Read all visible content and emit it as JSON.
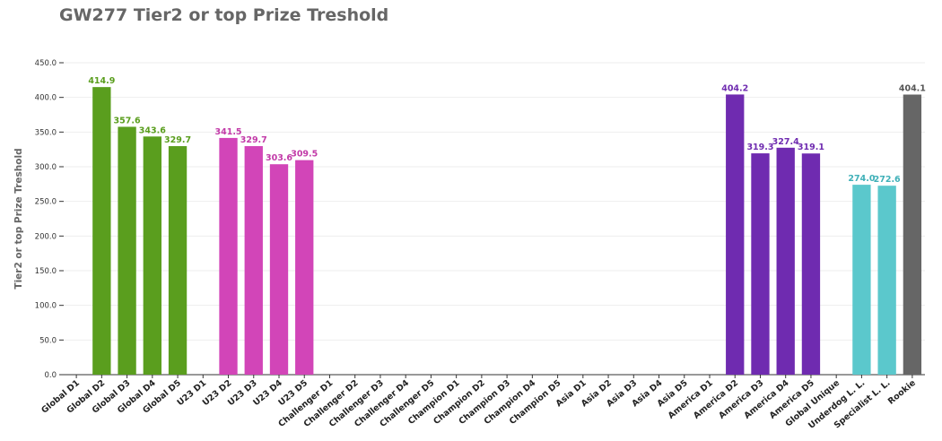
{
  "chart_data": {
    "type": "bar",
    "title": "GW277 Tier2 or top Prize Treshold",
    "ylabel": "Tier2 or top Prize Treshold",
    "xlabel": "",
    "ylim": [
      0,
      450
    ],
    "yticks": [
      0,
      50,
      100,
      150,
      200,
      250,
      300,
      350,
      400,
      450
    ],
    "ytick_labels": [
      "0.0",
      "50.0",
      "100.0",
      "150.0",
      "200.0",
      "250.0",
      "300.0",
      "350.0",
      "400.0",
      "450.0"
    ],
    "grid": true,
    "categories": [
      "Global D1",
      "Global D2",
      "Global D3",
      "Global D4",
      "Global D5",
      "U23 D1",
      "U23 D2",
      "U23 D3",
      "U23 D4",
      "U23 D5",
      "Challenger D1",
      "Challenger D2",
      "Challenger D3",
      "Challenger D4",
      "Challenger D5",
      "Champion D1",
      "Champion D2",
      "Champion D3",
      "Champion D4",
      "Champion D5",
      "Asia D1",
      "Asia D2",
      "Asia D3",
      "Asia D4",
      "Asia D5",
      "America D1",
      "America D2",
      "America D3",
      "America D4",
      "America D5",
      "Global Unique",
      "Underdog L. L.",
      "Specialist L. L.",
      "Rookie"
    ],
    "values": [
      null,
      414.9,
      357.6,
      343.6,
      329.7,
      null,
      341.5,
      329.7,
      303.6,
      309.5,
      null,
      null,
      null,
      null,
      null,
      null,
      null,
      null,
      null,
      null,
      null,
      null,
      null,
      null,
      null,
      null,
      404.2,
      319.3,
      327.4,
      319.1,
      null,
      274.0,
      272.6,
      404.1
    ],
    "value_labels": [
      "",
      "414.9",
      "357.6",
      "343.6",
      "329.7",
      "",
      "341.5",
      "329.7",
      "303.6",
      "309.5",
      "",
      "",
      "",
      "",
      "",
      "",
      "",
      "",
      "",
      "",
      "",
      "",
      "",
      "",
      "",
      "",
      "404.2",
      "319.3",
      "327.4",
      "319.1",
      "",
      "274.0",
      "272.6",
      "404.1"
    ],
    "colors": [
      "#5a9e1e",
      "#5a9e1e",
      "#5a9e1e",
      "#5a9e1e",
      "#5a9e1e",
      "#d245b8",
      "#d245b8",
      "#d245b8",
      "#d245b8",
      "#d245b8",
      "#d245b8",
      "#d245b8",
      "#d245b8",
      "#d245b8",
      "#d245b8",
      "#d245b8",
      "#d245b8",
      "#d245b8",
      "#d245b8",
      "#d245b8",
      "#6f2bb0",
      "#6f2bb0",
      "#6f2bb0",
      "#6f2bb0",
      "#6f2bb0",
      "#6f2bb0",
      "#6f2bb0",
      "#6f2bb0",
      "#6f2bb0",
      "#6f2bb0",
      "#4dbdc4",
      "#5bc8cc",
      "#5bc8cc",
      "#666666"
    ],
    "label_colors": [
      "#5a9e1e",
      "#5a9e1e",
      "#5a9e1e",
      "#5a9e1e",
      "#5a9e1e",
      "#c23aa8",
      "#c23aa8",
      "#c23aa8",
      "#c23aa8",
      "#c23aa8",
      "#c23aa8",
      "#c23aa8",
      "#c23aa8",
      "#c23aa8",
      "#c23aa8",
      "#c23aa8",
      "#c23aa8",
      "#c23aa8",
      "#c23aa8",
      "#c23aa8",
      "#6f2bb0",
      "#6f2bb0",
      "#6f2bb0",
      "#6f2bb0",
      "#6f2bb0",
      "#6f2bb0",
      "#6f2bb0",
      "#6f2bb0",
      "#6f2bb0",
      "#6f2bb0",
      "#3fb0b8",
      "#3fb0b8",
      "#3fb0b8",
      "#555555"
    ]
  }
}
